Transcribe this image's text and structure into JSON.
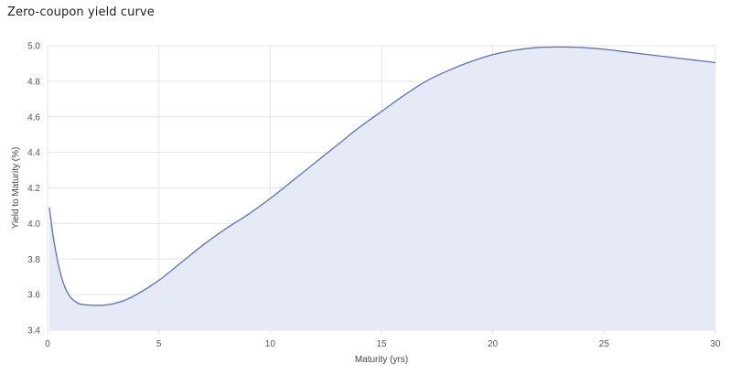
{
  "title": "Zero-coupon yield curve",
  "chart_data": {
    "type": "area",
    "title": "Zero-coupon yield curve",
    "xlabel": "Maturity (yrs)",
    "ylabel": "Yield to Maturity (%)",
    "xlim": [
      0,
      30
    ],
    "ylim": [
      3.4,
      5.0
    ],
    "x_ticks": [
      0,
      5,
      10,
      15,
      20,
      25,
      30
    ],
    "y_ticks": [
      3.4,
      3.6,
      3.8,
      4.0,
      4.2,
      4.4,
      4.6,
      4.8,
      5.0
    ],
    "x_tick_labels": [
      "0",
      "5",
      "10",
      "15",
      "20",
      "25",
      "30"
    ],
    "y_tick_labels": [
      "3.4",
      "3.6",
      "3.8",
      "4.0",
      "4.2",
      "4.4",
      "4.6",
      "4.8",
      "5.0"
    ],
    "grid": true,
    "legend": false,
    "series": [
      {
        "color": "#5b73b8",
        "fill": "#e6e9f6",
        "x": [
          0.08,
          0.25,
          0.5,
          0.75,
          1.0,
          1.25,
          1.5,
          2.0,
          2.5,
          3.0,
          3.5,
          4.0,
          5.0,
          6.0,
          7.0,
          8.0,
          9.0,
          10.0,
          11.0,
          12.0,
          13.0,
          14.0,
          15.0,
          16.0,
          17.0,
          18.0,
          19.0,
          20.0,
          21.0,
          22.0,
          23.0,
          24.0,
          25.0,
          26.0,
          27.0,
          28.0,
          29.0,
          30.0
        ],
        "y": [
          4.09,
          3.93,
          3.76,
          3.65,
          3.59,
          3.56,
          3.545,
          3.54,
          3.54,
          3.55,
          3.57,
          3.6,
          3.68,
          3.78,
          3.88,
          3.97,
          4.05,
          4.14,
          4.24,
          4.34,
          4.44,
          4.54,
          4.63,
          4.72,
          4.8,
          4.86,
          4.91,
          4.95,
          4.975,
          4.99,
          4.993,
          4.99,
          4.98,
          4.965,
          4.95,
          4.935,
          4.92,
          4.905
        ]
      }
    ]
  }
}
